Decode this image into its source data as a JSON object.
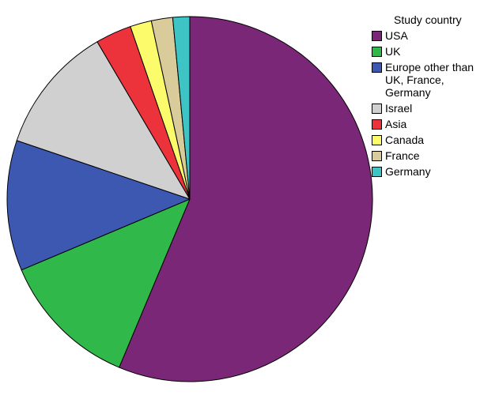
{
  "chart_data": {
    "type": "pie",
    "legend_title": "Study country",
    "legend_position": "right",
    "start_angle": "12 o'clock, clockwise",
    "slices": [
      {
        "label": "USA",
        "value": 56.6,
        "color": "#7b2778"
      },
      {
        "label": "UK",
        "value": 12.4,
        "color": "#31b84a"
      },
      {
        "label": "Europe other than\nUK, France,\nGermany",
        "value": 11.6,
        "color": "#3d58b0"
      },
      {
        "label": "Israel",
        "value": 11.4,
        "color": "#d0d0d0"
      },
      {
        "label": "Asia",
        "value": 3.2,
        "color": "#ec333b"
      },
      {
        "label": "Canada",
        "value": 1.9,
        "color": "#fbfb6b"
      },
      {
        "label": "France",
        "value": 1.9,
        "color": "#d9cb9a"
      },
      {
        "label": "Germany",
        "value": 1.5,
        "color": "#3ec4c4"
      }
    ]
  }
}
